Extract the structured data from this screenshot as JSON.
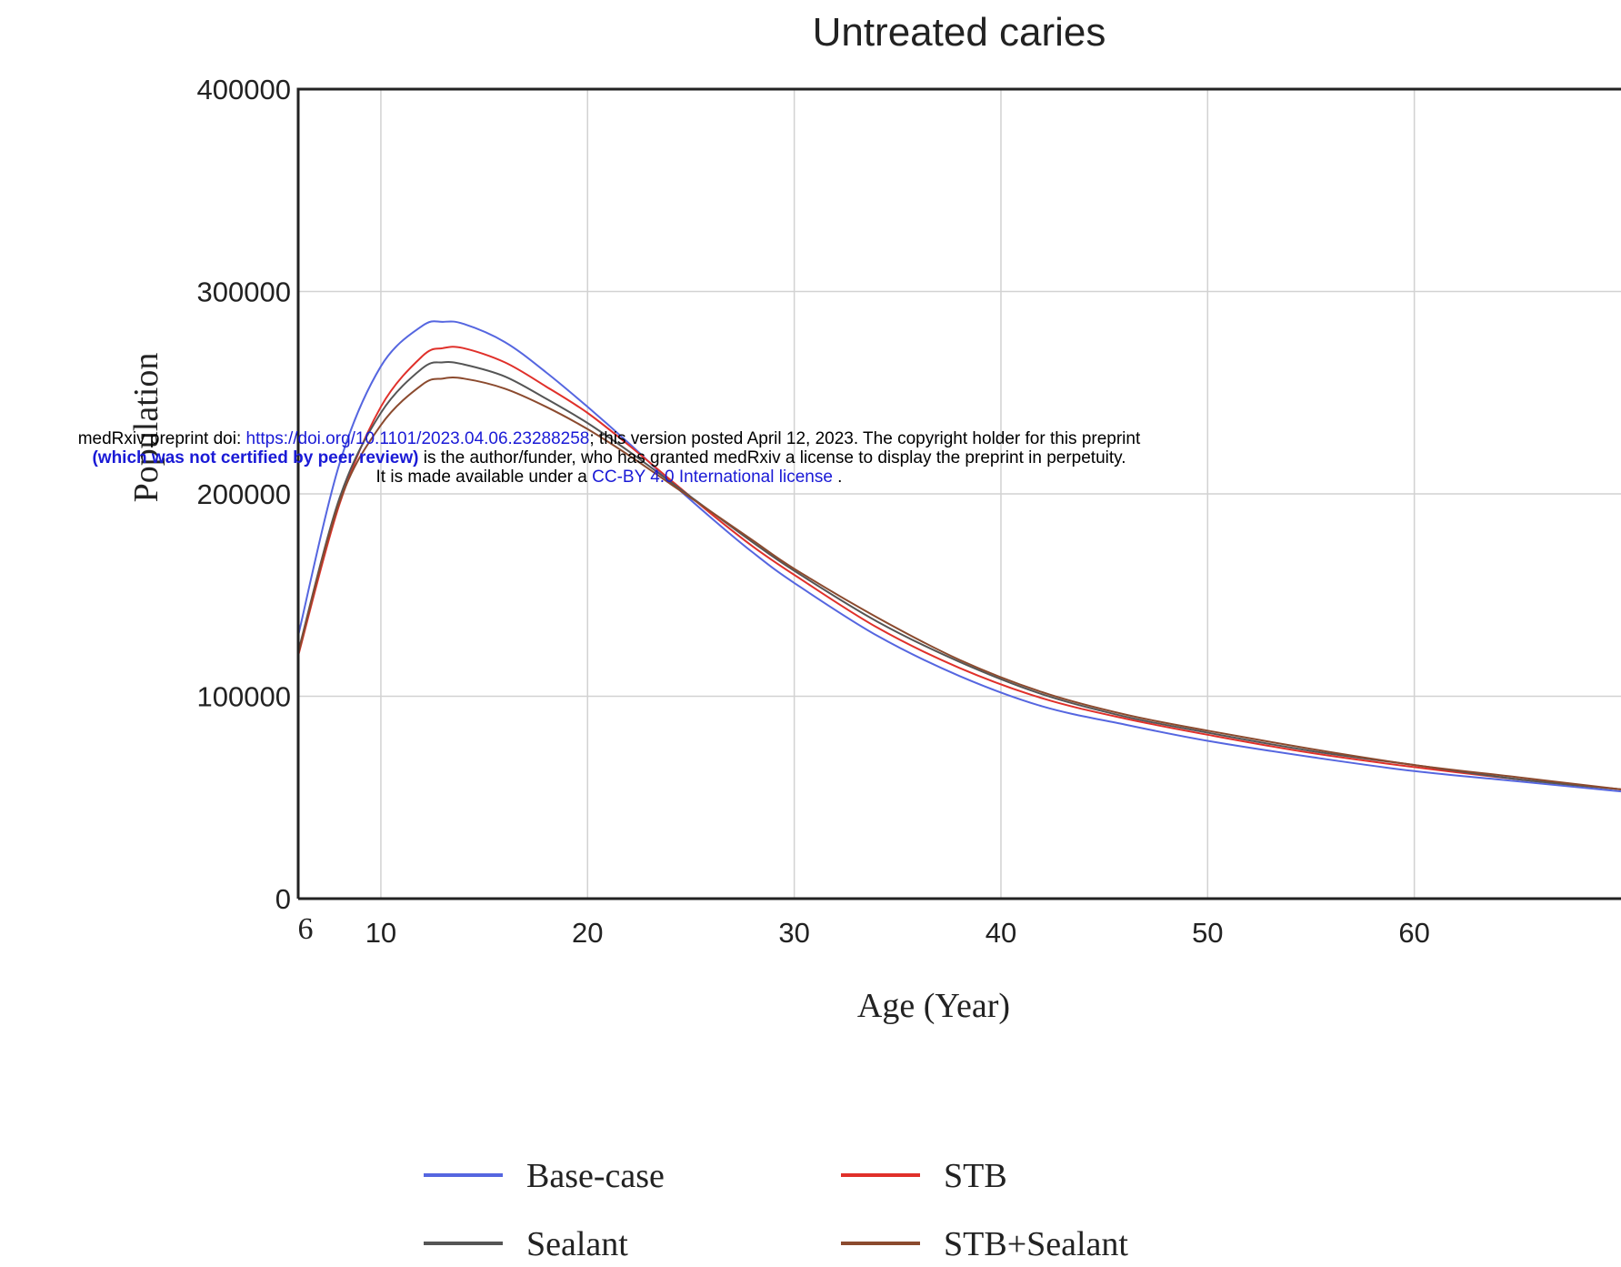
{
  "chart_data": {
    "type": "line",
    "title": "Untreated caries",
    "xlabel": "Age (Year)",
    "ylabel": "Population",
    "xlim": [
      6,
      70
    ],
    "ylim": [
      0,
      400000
    ],
    "x_ticks": [
      10,
      20,
      30,
      40,
      50,
      60
    ],
    "x_start_label": "6",
    "y_ticks": [
      0,
      100000,
      200000,
      300000,
      400000
    ],
    "grid": true,
    "legend_position": "bottom",
    "x": [
      6,
      8,
      10,
      12,
      13,
      14,
      16,
      18,
      20,
      22,
      24,
      26,
      28,
      30,
      34,
      38,
      42,
      46,
      50,
      55,
      60,
      65,
      70
    ],
    "series": [
      {
        "name": "Base-case",
        "color": "#5566e0",
        "values": [
          130000,
          215000,
          263000,
          283000,
          285000,
          284000,
          275000,
          260000,
          243000,
          225000,
          206000,
          188000,
          171000,
          156000,
          130000,
          110000,
          95000,
          86000,
          78000,
          70000,
          63000,
          58000,
          53000
        ]
      },
      {
        "name": "STB",
        "color": "#e0302a",
        "values": [
          120000,
          195000,
          243000,
          268000,
          272000,
          272000,
          265000,
          253000,
          240000,
          224000,
          207000,
          190000,
          174000,
          160000,
          134000,
          114000,
          99000,
          89000,
          81000,
          72000,
          65000,
          59000,
          54000
        ]
      },
      {
        "name": "Sealant",
        "color": "#555555",
        "values": [
          122000,
          198000,
          240000,
          262000,
          265000,
          264000,
          258000,
          247000,
          235000,
          221000,
          206000,
          191000,
          176000,
          162000,
          137000,
          117000,
          101000,
          90000,
          82000,
          73000,
          66000,
          59000,
          54000
        ]
      },
      {
        "name": "STB+Sealant",
        "color": "#8b4a2e",
        "values": [
          121000,
          196000,
          234000,
          254000,
          257000,
          257000,
          252000,
          243000,
          232000,
          219000,
          205000,
          191000,
          177000,
          163000,
          139000,
          118000,
          102000,
          91000,
          83000,
          74000,
          66000,
          60000,
          54000
        ]
      }
    ]
  },
  "watermark": {
    "line1_prefix": "medRxiv preprint doi: ",
    "doi_link": "https://doi.org/10.1101/2023.04.06.23288258",
    "line1_suffix": "; this version posted April 12, 2023. The copyright holder for this preprint",
    "line2_bold": "(which was not certified by peer review)",
    "line2_rest": " is the author/funder, who has granted medRxiv a license to display the preprint in perpetuity.",
    "line3_prefix": "It is made available under a ",
    "license_link": "CC-BY 4.0 International license",
    "line3_suffix": " ."
  }
}
